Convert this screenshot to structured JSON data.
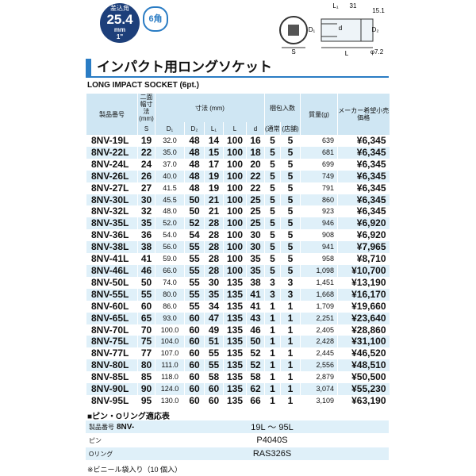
{
  "header": {
    "badge_label": "差込角",
    "badge_size": "25.4",
    "badge_unit": "mm",
    "badge_inch": "1\"",
    "hex": "6角",
    "title": "インパクト用ロングソケット",
    "subtitle": "LONG IMPACT SOCKET (6pt.)"
  },
  "diagram": {
    "labels": [
      "L₁",
      "31",
      "15.1",
      "D₁",
      "d",
      "D₂",
      "S",
      "L",
      "φ7.2"
    ]
  },
  "table": {
    "headers": {
      "product": "製品番号",
      "width": "二面幅寸法(mm)",
      "dims": "寸法 (mm)",
      "pack": "梱包入数",
      "mass": "質量(g)",
      "price": "メーカー希望小売価格"
    },
    "subheaders": [
      "S",
      "D₁",
      "D₂",
      "L₁",
      "L",
      "d",
      "(通常)",
      "(店舗)"
    ],
    "rows": [
      [
        "8NV-19L",
        "19",
        "32.0",
        "48",
        "14",
        "100",
        "16",
        "5",
        "5",
        "639",
        "¥6,345"
      ],
      [
        "8NV-22L",
        "22",
        "35.0",
        "48",
        "15",
        "100",
        "18",
        "5",
        "5",
        "681",
        "¥6,345"
      ],
      [
        "8NV-24L",
        "24",
        "37.0",
        "48",
        "17",
        "100",
        "20",
        "5",
        "5",
        "699",
        "¥6,345"
      ],
      [
        "8NV-26L",
        "26",
        "40.0",
        "48",
        "19",
        "100",
        "22",
        "5",
        "5",
        "749",
        "¥6,345"
      ],
      [
        "8NV-27L",
        "27",
        "41.5",
        "48",
        "19",
        "100",
        "22",
        "5",
        "5",
        "791",
        "¥6,345"
      ],
      [
        "8NV-30L",
        "30",
        "45.5",
        "50",
        "21",
        "100",
        "25",
        "5",
        "5",
        "860",
        "¥6,345"
      ],
      [
        "8NV-32L",
        "32",
        "48.0",
        "50",
        "21",
        "100",
        "25",
        "5",
        "5",
        "923",
        "¥6,345"
      ],
      [
        "8NV-35L",
        "35",
        "52.0",
        "52",
        "28",
        "100",
        "25",
        "5",
        "5",
        "946",
        "¥6,920"
      ],
      [
        "8NV-36L",
        "36",
        "54.0",
        "54",
        "28",
        "100",
        "30",
        "5",
        "5",
        "908",
        "¥6,920"
      ],
      [
        "8NV-38L",
        "38",
        "56.0",
        "55",
        "28",
        "100",
        "30",
        "5",
        "5",
        "941",
        "¥7,965"
      ],
      [
        "8NV-41L",
        "41",
        "59.0",
        "55",
        "28",
        "100",
        "35",
        "5",
        "5",
        "958",
        "¥8,710"
      ],
      [
        "8NV-46L",
        "46",
        "66.0",
        "55",
        "28",
        "100",
        "35",
        "5",
        "5",
        "1,098",
        "¥10,700"
      ],
      [
        "8NV-50L",
        "50",
        "74.0",
        "55",
        "30",
        "135",
        "38",
        "3",
        "3",
        "1,451",
        "¥13,190"
      ],
      [
        "8NV-55L",
        "55",
        "80.0",
        "55",
        "35",
        "135",
        "41",
        "3",
        "3",
        "1,668",
        "¥16,170"
      ],
      [
        "8NV-60L",
        "60",
        "86.0",
        "55",
        "34",
        "135",
        "41",
        "1",
        "1",
        "1,709",
        "¥19,660"
      ],
      [
        "8NV-65L",
        "65",
        "93.0",
        "60",
        "47",
        "135",
        "43",
        "1",
        "1",
        "2,251",
        "¥23,640"
      ],
      [
        "8NV-70L",
        "70",
        "100.0",
        "60",
        "49",
        "135",
        "46",
        "1",
        "1",
        "2,405",
        "¥28,860"
      ],
      [
        "8NV-75L",
        "75",
        "104.0",
        "60",
        "51",
        "135",
        "50",
        "1",
        "1",
        "2,428",
        "¥31,100"
      ],
      [
        "8NV-77L",
        "77",
        "107.0",
        "60",
        "55",
        "135",
        "52",
        "1",
        "1",
        "2,445",
        "¥46,520"
      ],
      [
        "8NV-80L",
        "80",
        "111.0",
        "60",
        "55",
        "135",
        "52",
        "1",
        "1",
        "2,556",
        "¥48,510"
      ],
      [
        "8NV-85L",
        "85",
        "118.0",
        "60",
        "58",
        "135",
        "58",
        "1",
        "1",
        "2,879",
        "¥50,500"
      ],
      [
        "8NV-90L",
        "90",
        "124.0",
        "60",
        "60",
        "135",
        "62",
        "1",
        "1",
        "3,074",
        "¥55,230"
      ],
      [
        "8NV-95L",
        "95",
        "130.0",
        "60",
        "60",
        "135",
        "66",
        "1",
        "1",
        "3,109",
        "¥63,190"
      ]
    ]
  },
  "pin_table": {
    "title": "■ピン・Oリング適応表",
    "rows": [
      [
        "製品番号",
        "8NV-",
        "19L ～ 95L"
      ],
      [
        "ピン",
        "",
        "P4040S"
      ],
      [
        "Oリング",
        "",
        "RAS326S"
      ]
    ]
  },
  "footnote": "※ビニール袋入り（10 個入）"
}
